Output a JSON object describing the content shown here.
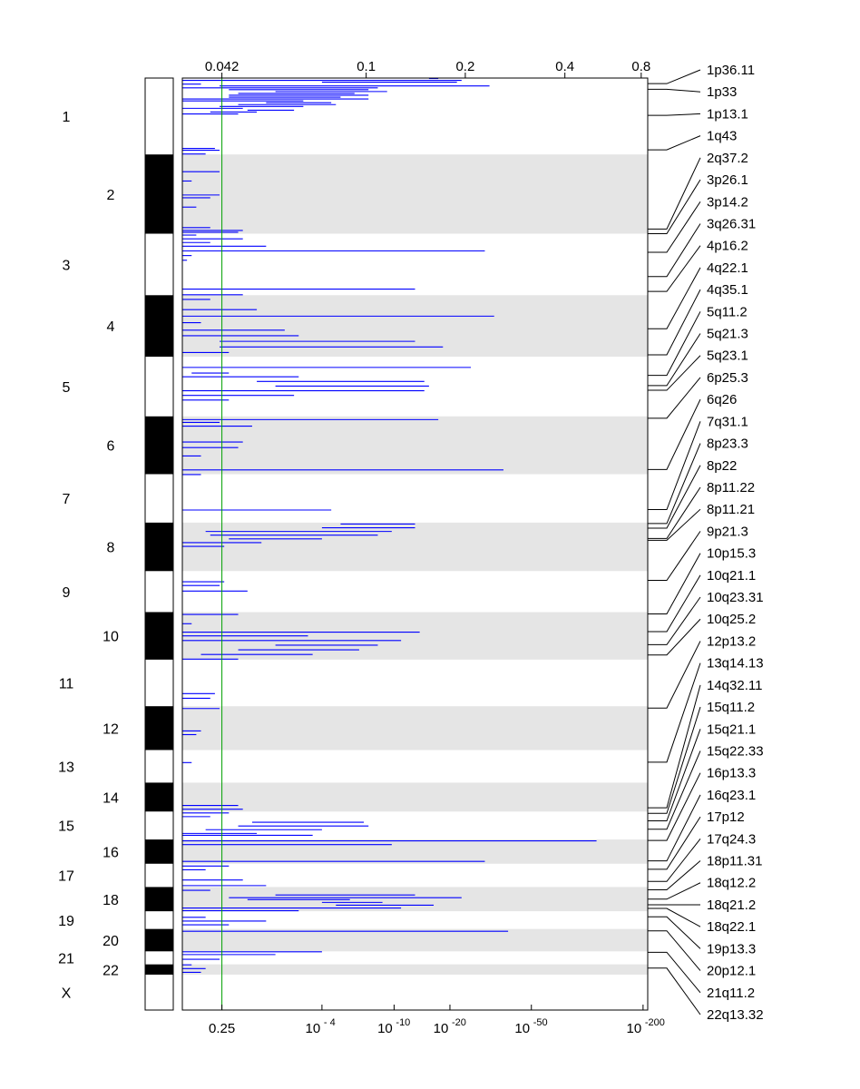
{
  "chart_data": {
    "type": "chromosome-segment-plot",
    "top_axis": {
      "ticks": [
        {
          "label": "0.042",
          "pos": 0.085
        },
        {
          "label": "0.1",
          "pos": 0.395
        },
        {
          "label": "0.2",
          "pos": 0.608
        },
        {
          "label": "0.4",
          "pos": 0.822
        },
        {
          "label": "0.8",
          "pos": 0.986
        }
      ]
    },
    "bottom_axis": {
      "ticks": [
        {
          "base": "0.25",
          "exp": "",
          "pos": 0.085
        },
        {
          "base": "10",
          "exp": "- 4",
          "pos": 0.3
        },
        {
          "base": "10",
          "exp": "-10",
          "pos": 0.455
        },
        {
          "base": "10",
          "exp": "-20",
          "pos": 0.575
        },
        {
          "base": "10",
          "exp": "-50",
          "pos": 0.75
        },
        {
          "base": "10",
          "exp": "-200",
          "pos": 0.99
        }
      ]
    },
    "threshold": {
      "pos": 0.085,
      "color": "#00a000"
    },
    "series_color": "#0000ff",
    "chromosomes": [
      {
        "label": "1",
        "start": 0.0,
        "end": 0.082
      },
      {
        "label": "2",
        "start": 0.082,
        "end": 0.167
      },
      {
        "label": "3",
        "start": 0.167,
        "end": 0.233
      },
      {
        "label": "4",
        "start": 0.233,
        "end": 0.299
      },
      {
        "label": "5",
        "start": 0.299,
        "end": 0.363
      },
      {
        "label": "6",
        "start": 0.363,
        "end": 0.425
      },
      {
        "label": "7",
        "start": 0.425,
        "end": 0.477
      },
      {
        "label": "8",
        "start": 0.477,
        "end": 0.529
      },
      {
        "label": "9",
        "start": 0.529,
        "end": 0.573
      },
      {
        "label": "10",
        "start": 0.573,
        "end": 0.624
      },
      {
        "label": "11",
        "start": 0.624,
        "end": 0.674
      },
      {
        "label": "12",
        "start": 0.674,
        "end": 0.721
      },
      {
        "label": "13",
        "start": 0.721,
        "end": 0.756
      },
      {
        "label": "14",
        "start": 0.756,
        "end": 0.787
      },
      {
        "label": "15",
        "start": 0.787,
        "end": 0.817
      },
      {
        "label": "16",
        "start": 0.817,
        "end": 0.843
      },
      {
        "label": "17",
        "start": 0.843,
        "end": 0.868
      },
      {
        "label": "18",
        "start": 0.868,
        "end": 0.894
      },
      {
        "label": "19",
        "start": 0.894,
        "end": 0.913
      },
      {
        "label": "20",
        "start": 0.913,
        "end": 0.937
      },
      {
        "label": "21",
        "start": 0.937,
        "end": 0.951
      },
      {
        "label": "22",
        "start": 0.951,
        "end": 0.962
      },
      {
        "label": "X",
        "start": 0.962,
        "end": 1.0
      }
    ],
    "peak_labels": [
      {
        "label": "1p36.11",
        "pos": 0.006
      },
      {
        "label": "1p33",
        "pos": 0.012
      },
      {
        "label": "1p13.1",
        "pos": 0.04
      },
      {
        "label": "1q43",
        "pos": 0.077
      },
      {
        "label": "2q37.2",
        "pos": 0.162
      },
      {
        "label": "3p26.1",
        "pos": 0.167
      },
      {
        "label": "3p14.2",
        "pos": 0.187
      },
      {
        "label": "3q26.31",
        "pos": 0.213
      },
      {
        "label": "4p16.2",
        "pos": 0.229
      },
      {
        "label": "4q22.1",
        "pos": 0.269
      },
      {
        "label": "4q35.1",
        "pos": 0.297
      },
      {
        "label": "5q11.2",
        "pos": 0.319
      },
      {
        "label": "5q21.3",
        "pos": 0.33
      },
      {
        "label": "5q23.1",
        "pos": 0.335
      },
      {
        "label": "6p25.3",
        "pos": 0.365
      },
      {
        "label": "6q26",
        "pos": 0.42
      },
      {
        "label": "7q31.1",
        "pos": 0.463
      },
      {
        "label": "8p23.3",
        "pos": 0.478
      },
      {
        "label": "8p22",
        "pos": 0.483
      },
      {
        "label": "8p11.22",
        "pos": 0.494
      },
      {
        "label": "8p11.21",
        "pos": 0.496
      },
      {
        "label": "9p21.3",
        "pos": 0.539
      },
      {
        "label": "10p15.3",
        "pos": 0.575
      },
      {
        "label": "10q21.1",
        "pos": 0.594
      },
      {
        "label": "10q23.31",
        "pos": 0.608
      },
      {
        "label": "10q25.2",
        "pos": 0.619
      },
      {
        "label": "12p13.2",
        "pos": 0.676
      },
      {
        "label": "13q14.13",
        "pos": 0.734
      },
      {
        "label": "14q32.11",
        "pos": 0.783
      },
      {
        "label": "15q11.2",
        "pos": 0.789
      },
      {
        "label": "15q21.1",
        "pos": 0.797
      },
      {
        "label": "15q22.33",
        "pos": 0.806
      },
      {
        "label": "16p13.3",
        "pos": 0.818
      },
      {
        "label": "16q23.1",
        "pos": 0.84
      },
      {
        "label": "17p12",
        "pos": 0.849
      },
      {
        "label": "17q24.3",
        "pos": 0.862
      },
      {
        "label": "18p11.31",
        "pos": 0.871
      },
      {
        "label": "18q12.2",
        "pos": 0.881
      },
      {
        "label": "18q21.2",
        "pos": 0.887
      },
      {
        "label": "18q22.1",
        "pos": 0.891
      },
      {
        "label": "19p13.3",
        "pos": 0.9
      },
      {
        "label": "20p12.1",
        "pos": 0.915
      },
      {
        "label": "21q11.2",
        "pos": 0.938
      },
      {
        "label": "22q13.32",
        "pos": 0.955
      }
    ],
    "segments": [
      [
        0.0,
        0.53,
        0.55
      ],
      [
        0.002,
        0.0,
        0.6
      ],
      [
        0.004,
        0.3,
        0.59
      ],
      [
        0.006,
        0.0,
        0.04
      ],
      [
        0.008,
        0.08,
        0.66
      ],
      [
        0.01,
        0.0,
        0.42
      ],
      [
        0.012,
        0.1,
        0.4
      ],
      [
        0.014,
        0.2,
        0.44
      ],
      [
        0.016,
        0.12,
        0.37
      ],
      [
        0.018,
        0.1,
        0.4
      ],
      [
        0.02,
        0.1,
        0.34
      ],
      [
        0.022,
        0.0,
        0.4
      ],
      [
        0.024,
        0.0,
        0.26
      ],
      [
        0.026,
        0.18,
        0.32
      ],
      [
        0.028,
        0.12,
        0.33
      ],
      [
        0.03,
        0.08,
        0.26
      ],
      [
        0.032,
        0.0,
        0.13
      ],
      [
        0.034,
        0.14,
        0.24
      ],
      [
        0.036,
        0.06,
        0.16
      ],
      [
        0.038,
        0.0,
        0.12
      ],
      [
        0.075,
        0.0,
        0.07
      ],
      [
        0.077,
        0.0,
        0.08
      ],
      [
        0.081,
        0.0,
        0.05
      ],
      [
        0.1,
        0.0,
        0.08
      ],
      [
        0.11,
        0.0,
        0.02
      ],
      [
        0.125,
        0.0,
        0.08
      ],
      [
        0.128,
        0.0,
        0.06
      ],
      [
        0.138,
        0.0,
        0.03
      ],
      [
        0.16,
        0.0,
        0.06
      ],
      [
        0.163,
        0.0,
        0.13
      ],
      [
        0.165,
        0.0,
        0.12
      ],
      [
        0.168,
        0.0,
        0.03
      ],
      [
        0.172,
        0.0,
        0.13
      ],
      [
        0.176,
        0.0,
        0.06
      ],
      [
        0.18,
        0.0,
        0.18
      ],
      [
        0.185,
        0.0,
        0.65
      ],
      [
        0.19,
        0.0,
        0.02
      ],
      [
        0.195,
        0.0,
        0.01
      ],
      [
        0.226,
        0.0,
        0.5
      ],
      [
        0.232,
        0.0,
        0.13
      ],
      [
        0.237,
        0.0,
        0.06
      ],
      [
        0.248,
        0.0,
        0.16
      ],
      [
        0.255,
        0.0,
        0.67
      ],
      [
        0.262,
        0.0,
        0.04
      ],
      [
        0.27,
        0.0,
        0.22
      ],
      [
        0.276,
        0.0,
        0.25
      ],
      [
        0.282,
        0.08,
        0.5
      ],
      [
        0.288,
        0.08,
        0.56
      ],
      [
        0.294,
        0.0,
        0.1
      ],
      [
        0.31,
        0.0,
        0.62
      ],
      [
        0.316,
        0.02,
        0.1
      ],
      [
        0.32,
        0.0,
        0.25
      ],
      [
        0.325,
        0.16,
        0.52
      ],
      [
        0.33,
        0.2,
        0.53
      ],
      [
        0.335,
        0.0,
        0.52
      ],
      [
        0.34,
        0.0,
        0.24
      ],
      [
        0.345,
        0.0,
        0.1
      ],
      [
        0.366,
        0.0,
        0.55
      ],
      [
        0.369,
        0.0,
        0.08
      ],
      [
        0.373,
        0.0,
        0.15
      ],
      [
        0.39,
        0.0,
        0.13
      ],
      [
        0.396,
        0.0,
        0.12
      ],
      [
        0.405,
        0.0,
        0.04
      ],
      [
        0.42,
        0.0,
        0.69
      ],
      [
        0.425,
        0.0,
        0.04
      ],
      [
        0.463,
        0.0,
        0.32
      ],
      [
        0.478,
        0.34,
        0.5
      ],
      [
        0.482,
        0.3,
        0.5
      ],
      [
        0.486,
        0.05,
        0.45
      ],
      [
        0.49,
        0.06,
        0.42
      ],
      [
        0.494,
        0.1,
        0.3
      ],
      [
        0.498,
        0.0,
        0.17
      ],
      [
        0.502,
        0.0,
        0.09
      ],
      [
        0.54,
        0.0,
        0.09
      ],
      [
        0.544,
        0.0,
        0.08
      ],
      [
        0.55,
        0.0,
        0.14
      ],
      [
        0.575,
        0.0,
        0.12
      ],
      [
        0.585,
        0.0,
        0.02
      ],
      [
        0.594,
        0.0,
        0.51
      ],
      [
        0.598,
        0.0,
        0.27
      ],
      [
        0.603,
        0.0,
        0.47
      ],
      [
        0.608,
        0.2,
        0.42
      ],
      [
        0.613,
        0.12,
        0.38
      ],
      [
        0.618,
        0.04,
        0.28
      ],
      [
        0.623,
        0.0,
        0.12
      ],
      [
        0.66,
        0.0,
        0.07
      ],
      [
        0.665,
        0.0,
        0.06
      ],
      [
        0.676,
        0.0,
        0.08
      ],
      [
        0.7,
        0.0,
        0.04
      ],
      [
        0.704,
        0.0,
        0.03
      ],
      [
        0.734,
        0.0,
        0.02
      ],
      [
        0.78,
        0.0,
        0.12
      ],
      [
        0.784,
        0.0,
        0.13
      ],
      [
        0.788,
        0.0,
        0.1
      ],
      [
        0.792,
        0.0,
        0.06
      ],
      [
        0.798,
        0.15,
        0.39
      ],
      [
        0.802,
        0.12,
        0.4
      ],
      [
        0.806,
        0.05,
        0.3
      ],
      [
        0.81,
        0.0,
        0.16
      ],
      [
        0.812,
        0.0,
        0.28
      ],
      [
        0.818,
        0.0,
        0.89
      ],
      [
        0.822,
        0.0,
        0.45
      ],
      [
        0.84,
        0.0,
        0.65
      ],
      [
        0.845,
        0.0,
        0.1
      ],
      [
        0.849,
        0.0,
        0.05
      ],
      [
        0.86,
        0.0,
        0.13
      ],
      [
        0.866,
        0.0,
        0.18
      ],
      [
        0.871,
        0.0,
        0.06
      ],
      [
        0.876,
        0.2,
        0.5
      ],
      [
        0.879,
        0.1,
        0.6
      ],
      [
        0.881,
        0.14,
        0.36
      ],
      [
        0.884,
        0.3,
        0.43
      ],
      [
        0.887,
        0.33,
        0.54
      ],
      [
        0.89,
        0.0,
        0.47
      ],
      [
        0.893,
        0.0,
        0.25
      ],
      [
        0.9,
        0.0,
        0.05
      ],
      [
        0.904,
        0.0,
        0.18
      ],
      [
        0.908,
        0.0,
        0.1
      ],
      [
        0.915,
        0.0,
        0.7
      ],
      [
        0.937,
        0.0,
        0.3
      ],
      [
        0.94,
        0.0,
        0.2
      ],
      [
        0.945,
        0.0,
        0.08
      ],
      [
        0.951,
        0.0,
        0.02
      ],
      [
        0.955,
        0.0,
        0.05
      ],
      [
        0.959,
        0.0,
        0.04
      ]
    ]
  }
}
